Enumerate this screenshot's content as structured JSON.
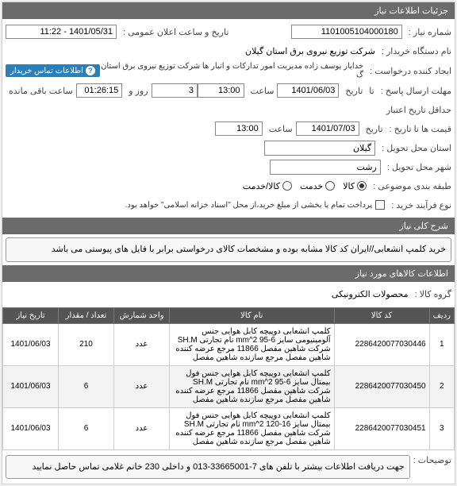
{
  "sections": {
    "need_info": "جزئیات اطلاعات نیاز",
    "general_desc": "شرح کلی نیاز",
    "items_info": "اطلاعات کالاهای مورد نیاز"
  },
  "labels": {
    "need_number": "شماره نیاز",
    "buyer_name": "نام دستگاه خریدار",
    "requester": "ایجاد کننده درخواست",
    "reply_deadline": "مهلت ارسال پاسخ",
    "validity_deadline": "حداقل تاریخ اعتبار",
    "price_until": "قیمت ها تا تاریخ",
    "delivery_province": "استان محل تحویل",
    "delivery_city": "شهر محل تحویل",
    "category": "طبقه بندی موضوعی",
    "process_type": "نوع فرآیند خرید",
    "announce_date": "تاریخ و ساعت اعلان عمومی",
    "date": "تاریخ",
    "hour": "ساعت",
    "day_and": "روز و",
    "remaining": "ساعت باقی مانده",
    "until": "تا",
    "contact_info": "اطلاعات تماس خریدار",
    "product_group": "گروه کالا",
    "more_info": "توضیحات"
  },
  "fields": {
    "need_number": "1101005104000180",
    "buyer_name": "شرکت توزیع نیروی برق استان گیلان",
    "requester": "خدایار یوسف زاده مدیریت امور تدارکات و انبار ها شرکت توزیع نیروی برق استان گ",
    "announce_date": "1401/05/31 - 11:22",
    "reply_date": "1401/06/03",
    "reply_hour": "13:00",
    "reply_days": "3",
    "reply_remaining": "01:26:15",
    "validity_date": "1401/07/03",
    "validity_hour": "13:00",
    "province": "گیلان",
    "city": "رشت",
    "product_group": "محصولات الکترونیکی"
  },
  "radios": {
    "cat_goods": "کالا",
    "cat_service": "خدمت",
    "cat_both": "کالا/خدمت",
    "cat_selected": "goods"
  },
  "process_note": "پرداخت تمام یا بخشی از مبلغ خرید،از محل \"اسناد خزانه اسلامی\" خواهد بود.",
  "general_desc": "خرید کلمپ انشعابی//ایران کد کالا مشابه بوده و مشخصات کالای درخواستی برابر با فایل های پیوستی می باشد",
  "more_info": "جهت دریافت اطلاعات بیشتر با تلفن های 7-33665001-013 و داخلی 230 خانم غلامی تماس حاصل نمایید",
  "items": {
    "columns": {
      "idx": "ردیف",
      "code": "کد کالا",
      "name": "نام کالا",
      "unit": "واحد شمارش",
      "qty": "تعداد / مقدار",
      "date": "تاریخ نیاز"
    },
    "rows": [
      {
        "idx": "1",
        "code": "2286420077030446",
        "name": "کلمپ انشعابی دوپیچه کابل هوایی جنس آلومینیومی سایز 6-95 mm^2 نام تجارتی SH.M شرکت شاهین مفصل 11866 مرجع عرضه کننده شاهین مفصل مرجع سازنده شاهین مفصل",
        "unit": "عدد",
        "qty": "210",
        "date": "1401/06/03"
      },
      {
        "idx": "2",
        "code": "2286420077030450",
        "name": "کلمپ انشعابی دوپیچه کابل هوایی جنس فول بیمتال سایز 6-95 mm^2 نام تجارتی SH.M شرکت شاهین مفصل 11866 مرجع عرضه کننده شاهین مفصل مرجع سازنده شاهین مفصل",
        "unit": "عدد",
        "qty": "6",
        "date": "1401/06/03"
      },
      {
        "idx": "3",
        "code": "2286420077030451",
        "name": "کلمپ انشعابی دوپیچه کابل هوایی جنس فول بیمتال سایز 16-120 mm^2 نام تجارتی SH.M شرکت شاهین مفصل 11866 مرجع عرضه کننده شاهین مفصل مرجع سازنده شاهین مفصل",
        "unit": "عدد",
        "qty": "6",
        "date": "1401/06/03"
      }
    ]
  }
}
